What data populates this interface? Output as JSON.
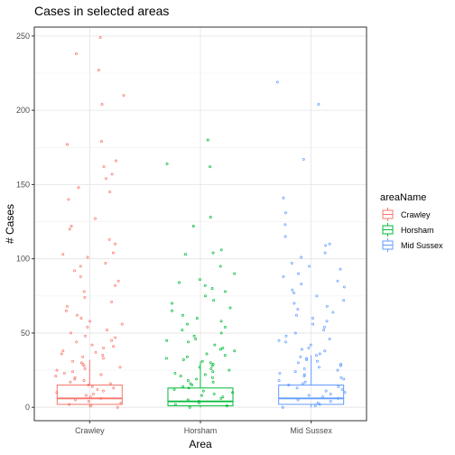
{
  "chart_data": {
    "type": "boxplot",
    "title": "Cases in selected areas",
    "xlabel": "Area",
    "ylabel": "# Cases",
    "ylim": [
      -9,
      256
    ],
    "yticks": [
      0,
      50,
      100,
      150,
      200,
      250
    ],
    "categories": [
      "Crawley",
      "Horsham",
      "Mid Sussex"
    ],
    "grid": true,
    "legend": {
      "title": "areaName",
      "placement": "right",
      "entries": [
        "Crawley",
        "Horsham",
        "Mid Sussex"
      ]
    },
    "series": [
      {
        "name": "Crawley",
        "color": "#F8766D",
        "box": {
          "min": 0,
          "q1": 2,
          "median": 6,
          "q3": 15,
          "max": 32
        },
        "points": [
          249,
          238,
          227,
          210,
          204,
          179,
          177,
          166,
          162,
          157,
          154,
          148,
          145,
          140,
          127,
          122,
          120,
          113,
          110,
          104,
          103,
          101,
          97,
          95,
          92,
          88,
          85,
          82,
          78,
          74,
          71,
          68,
          65,
          62,
          60,
          58,
          56,
          54,
          52,
          50,
          48,
          47,
          45,
          44,
          42,
          41,
          40,
          38,
          37,
          36,
          35,
          34,
          33,
          31,
          30,
          29,
          28,
          27,
          26,
          25,
          24,
          23,
          22,
          21,
          20,
          19,
          18,
          17,
          16,
          15,
          14,
          13,
          12,
          11,
          10,
          9,
          8,
          7,
          6,
          5,
          4,
          3,
          2,
          1,
          0
        ]
      },
      {
        "name": "Horsham",
        "color": "#00BA38",
        "box": {
          "min": 0,
          "q1": 1,
          "median": 4,
          "q3": 13,
          "max": 31
        },
        "points": [
          180,
          164,
          162,
          128,
          122,
          106,
          104,
          103,
          95,
          90,
          86,
          84,
          82,
          80,
          78,
          75,
          72,
          70,
          67,
          65,
          62,
          60,
          58,
          56,
          54,
          52,
          50,
          48,
          46,
          45,
          44,
          42,
          40,
          39,
          38,
          36,
          35,
          34,
          33,
          32,
          31,
          30,
          29,
          28,
          27,
          26,
          25,
          24,
          23,
          22,
          21,
          20,
          19,
          18,
          17,
          16,
          15,
          14,
          13,
          12,
          11,
          10,
          9,
          8,
          7,
          6,
          5,
          4,
          3,
          2,
          1,
          0
        ]
      },
      {
        "name": "Mid Sussex",
        "color": "#619CFF",
        "box": {
          "min": 0,
          "q1": 2,
          "median": 6,
          "q3": 15,
          "max": 35
        },
        "points": [
          219,
          204,
          167,
          141,
          131,
          123,
          115,
          110,
          109,
          104,
          101,
          97,
          95,
          93,
          90,
          88,
          85,
          83,
          81,
          79,
          77,
          75,
          72,
          70,
          68,
          66,
          64,
          62,
          60,
          58,
          56,
          54,
          52,
          50,
          48,
          46,
          45,
          44,
          42,
          40,
          39,
          38,
          36,
          35,
          34,
          33,
          32,
          31,
          30,
          29,
          28,
          27,
          26,
          25,
          24,
          23,
          22,
          21,
          20,
          19,
          18,
          17,
          16,
          15,
          14,
          13,
          12,
          11,
          10,
          9,
          8,
          7,
          6,
          5,
          4,
          3,
          2,
          1,
          0
        ]
      }
    ]
  }
}
